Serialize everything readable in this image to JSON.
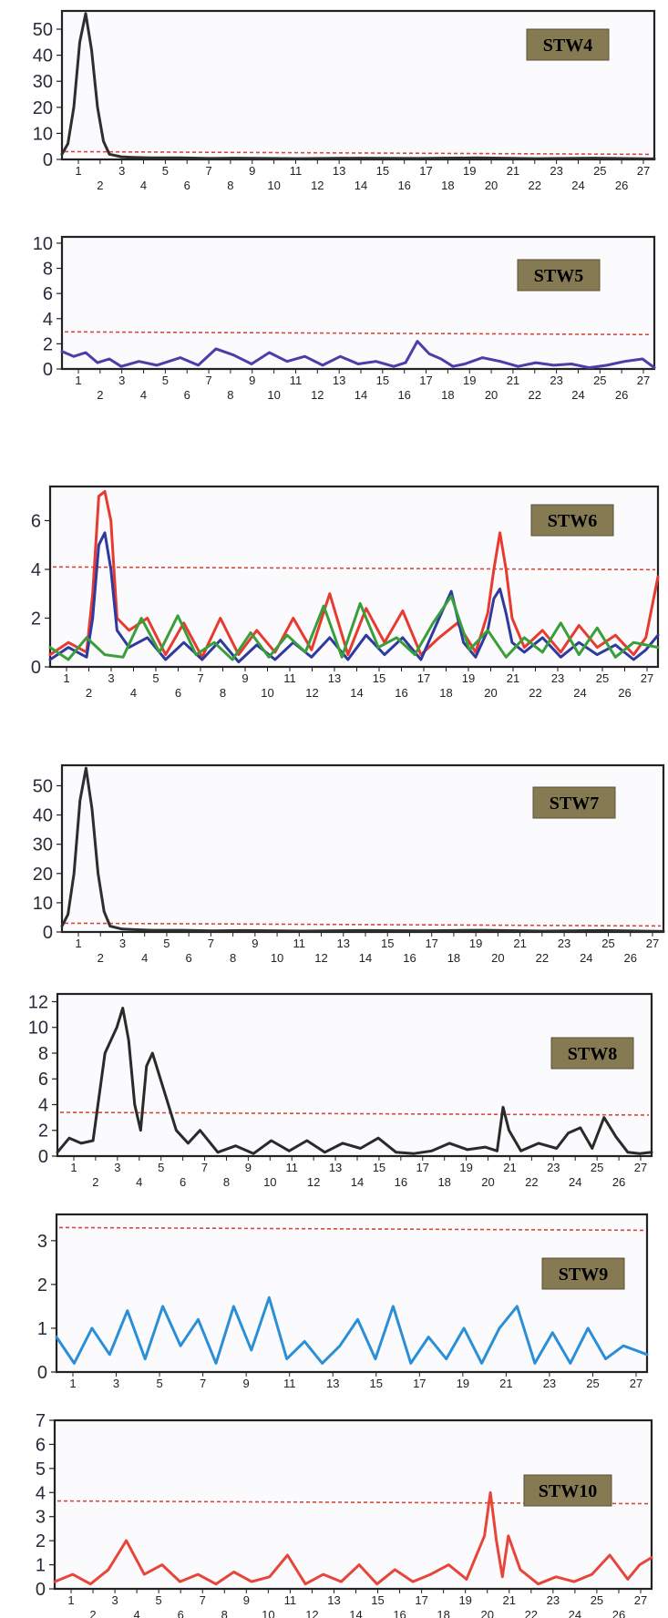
{
  "chart_data": [
    {
      "type": "line",
      "title": "STW4",
      "xlabel": "",
      "ylabel": "",
      "yticks": [
        "0",
        "10",
        "20",
        "30",
        "40",
        "50"
      ],
      "ylim": [
        0,
        57
      ],
      "threshold": 3,
      "x_tick_labels": [
        "1",
        "2",
        "3",
        "4",
        "5",
        "6",
        "7",
        "8",
        "9",
        "10",
        "11",
        "12",
        "13",
        "14",
        "15",
        "16",
        "17",
        "18",
        "19",
        "20",
        "21",
        "22",
        "23",
        "24",
        "25",
        "26",
        "27"
      ],
      "series": [
        {
          "color": "#2e2e2e",
          "x": [
            0,
            1,
            2,
            3,
            4,
            5,
            6,
            7,
            8,
            9,
            10,
            12,
            15,
            20,
            25,
            30,
            40,
            50,
            60,
            70,
            80,
            90,
            100
          ],
          "y": [
            2,
            6,
            20,
            45,
            56,
            42,
            20,
            7,
            2,
            1.5,
            1,
            0.8,
            0.6,
            0.6,
            0.4,
            0.5,
            0.3,
            0.5,
            0.4,
            0.6,
            0.3,
            0.5,
            0.2
          ]
        }
      ]
    },
    {
      "type": "line",
      "title": "STW5",
      "xlabel": "",
      "ylabel": "",
      "yticks": [
        "0",
        "2",
        "4",
        "6",
        "8",
        "10"
      ],
      "ylim": [
        0,
        10.5
      ],
      "threshold": 2.95,
      "x_tick_labels": [
        "1",
        "2",
        "3",
        "4",
        "5",
        "6",
        "7",
        "8",
        "9",
        "10",
        "11",
        "12",
        "13",
        "14",
        "15",
        "16",
        "17",
        "18",
        "19",
        "20",
        "21",
        "22",
        "23",
        "24",
        "25",
        "26",
        "27"
      ],
      "series": [
        {
          "color": "#4a3fa8",
          "x": [
            0,
            2,
            4,
            6,
            8,
            10,
            13,
            16,
            20,
            23,
            26,
            29,
            32,
            35,
            38,
            41,
            44,
            47,
            50,
            53,
            56,
            58,
            60,
            62,
            64,
            66,
            68,
            71,
            74,
            77,
            80,
            83,
            86,
            89,
            92,
            95,
            98,
            100
          ],
          "y": [
            1.4,
            1,
            1.3,
            0.5,
            0.8,
            0.2,
            0.6,
            0.3,
            0.9,
            0.3,
            1.6,
            1.1,
            0.4,
            1.3,
            0.6,
            1,
            0.3,
            1,
            0.4,
            0.6,
            0.2,
            0.5,
            2.2,
            1.2,
            0.8,
            0.2,
            0.4,
            0.9,
            0.6,
            0.2,
            0.5,
            0.3,
            0.4,
            0.1,
            0.3,
            0.6,
            0.8,
            0.1
          ]
        }
      ]
    },
    {
      "type": "line",
      "title": "STW6",
      "xlabel": "",
      "ylabel": "",
      "yticks": [
        "0",
        "2",
        "4",
        "6"
      ],
      "ylim": [
        0,
        7.4
      ],
      "threshold": 4.1,
      "x_tick_labels": [
        "1",
        "2",
        "3",
        "4",
        "5",
        "6",
        "7",
        "8",
        "9",
        "10",
        "11",
        "12",
        "13",
        "14",
        "15",
        "16",
        "17",
        "18",
        "19",
        "20",
        "21",
        "22",
        "23",
        "24",
        "25",
        "26",
        "27"
      ],
      "series": [
        {
          "color": "#e83a2e",
          "x": [
            0,
            3,
            6,
            7,
            8,
            9,
            10,
            11,
            13,
            16,
            19,
            22,
            25,
            28,
            31,
            34,
            37,
            40,
            43,
            46,
            49,
            52,
            55,
            58,
            61,
            64,
            67,
            70,
            72,
            73,
            74,
            75,
            76,
            78,
            81,
            84,
            87,
            90,
            93,
            96,
            98,
            100
          ],
          "y": [
            0.5,
            1,
            0.6,
            3,
            7,
            7.2,
            6,
            2,
            1.5,
            2,
            0.5,
            1.8,
            0.4,
            2,
            0.5,
            1.5,
            0.6,
            2,
            0.7,
            3,
            0.5,
            2.4,
            1,
            2.3,
            0.5,
            1.2,
            1.8,
            0.6,
            2.2,
            4,
            5.5,
            4,
            2,
            0.8,
            1.5,
            0.6,
            1.7,
            0.8,
            1.3,
            0.5,
            1.2,
            3.7
          ]
        },
        {
          "color": "#2e3a9e",
          "x": [
            0,
            3,
            6,
            7,
            8,
            9,
            10,
            11,
            13,
            16,
            19,
            22,
            25,
            28,
            31,
            34,
            37,
            40,
            43,
            46,
            49,
            52,
            55,
            58,
            61,
            64,
            66,
            68,
            70,
            72,
            73,
            74,
            75,
            76,
            78,
            81,
            84,
            87,
            90,
            93,
            96,
            98,
            100
          ],
          "y": [
            0.3,
            0.8,
            0.4,
            2,
            5,
            5.5,
            4,
            1.5,
            0.8,
            1.2,
            0.3,
            1,
            0.3,
            1.1,
            0.2,
            0.9,
            0.3,
            1,
            0.4,
            1.2,
            0.3,
            1.3,
            0.5,
            1.2,
            0.3,
            2,
            3.1,
            1,
            0.4,
            1.5,
            2.8,
            3.2,
            2.2,
            1,
            0.6,
            1.2,
            0.4,
            1,
            0.5,
            0.9,
            0.3,
            0.7,
            1.3
          ]
        },
        {
          "color": "#3a9e3a",
          "x": [
            0,
            3,
            6,
            9,
            12,
            15,
            18,
            21,
            24,
            27,
            30,
            33,
            36,
            39,
            42,
            45,
            48,
            51,
            54,
            57,
            60,
            63,
            66,
            69,
            72,
            75,
            78,
            81,
            84,
            87,
            90,
            93,
            96,
            100
          ],
          "y": [
            0.8,
            0.3,
            1.2,
            0.5,
            0.4,
            2,
            0.6,
            2.1,
            0.5,
            1,
            0.3,
            1.4,
            0.4,
            1.3,
            0.6,
            2.5,
            0.4,
            2.6,
            0.8,
            1.2,
            0.5,
            1.8,
            2.9,
            0.7,
            1.5,
            0.4,
            1.2,
            0.6,
            1.8,
            0.5,
            1.6,
            0.4,
            1,
            0.8
          ]
        }
      ]
    },
    {
      "type": "line",
      "title": "STW7",
      "xlabel": "",
      "ylabel": "",
      "yticks": [
        "0",
        "10",
        "20",
        "30",
        "40",
        "50"
      ],
      "ylim": [
        0,
        57
      ],
      "threshold": 3,
      "x_tick_labels": [
        "1",
        "2",
        "3",
        "4",
        "5",
        "6",
        "7",
        "8",
        "9",
        "10",
        "11",
        "12",
        "13",
        "14",
        "15",
        "16",
        "17",
        "18",
        "19",
        "20",
        "21",
        "22",
        "23",
        "24",
        "25",
        "26",
        "27"
      ],
      "series": [
        {
          "color": "#2e2e2e",
          "x": [
            0,
            1,
            2,
            3,
            4,
            5,
            6,
            7,
            8,
            9,
            10,
            12,
            15,
            20,
            25,
            30,
            40,
            50,
            60,
            70,
            80,
            90,
            100
          ],
          "y": [
            2,
            6,
            20,
            45,
            56,
            42,
            20,
            7,
            2,
            1.5,
            1,
            0.8,
            0.6,
            0.6,
            0.4,
            0.5,
            0.3,
            0.5,
            0.4,
            0.6,
            0.3,
            0.5,
            0.2
          ]
        }
      ]
    },
    {
      "type": "line",
      "title": "STW8",
      "xlabel": "",
      "ylabel": "",
      "yticks": [
        "0",
        "2",
        "4",
        "6",
        "8",
        "10",
        "12"
      ],
      "ylim": [
        0,
        12.6
      ],
      "threshold": 3.4,
      "x_tick_labels": [
        "1",
        "2",
        "3",
        "4",
        "5",
        "6",
        "7",
        "8",
        "9",
        "10",
        "11",
        "12",
        "13",
        "14",
        "15",
        "16",
        "17",
        "18",
        "19",
        "20",
        "21",
        "22",
        "23",
        "24",
        "25",
        "26",
        "27"
      ],
      "series": [
        {
          "color": "#2a2a2a",
          "x": [
            0,
            2,
            4,
            6,
            8,
            10,
            11,
            12,
            13,
            14,
            15,
            16,
            18,
            20,
            22,
            24,
            27,
            30,
            33,
            36,
            39,
            42,
            45,
            48,
            51,
            54,
            57,
            60,
            63,
            66,
            69,
            72,
            74,
            75,
            76,
            78,
            81,
            84,
            86,
            88,
            90,
            92,
            94,
            96,
            98,
            100
          ],
          "y": [
            0.3,
            1.4,
            1,
            1.2,
            8,
            10,
            11.5,
            9,
            4,
            2,
            7,
            8,
            5,
            2,
            1,
            2,
            0.3,
            0.8,
            0.2,
            1.2,
            0.4,
            1.2,
            0.3,
            1,
            0.6,
            1.4,
            0.3,
            0.2,
            0.4,
            1,
            0.5,
            0.7,
            0.4,
            3.8,
            2,
            0.4,
            1,
            0.6,
            1.8,
            2.2,
            0.6,
            3,
            1.5,
            0.3,
            0.2,
            0.3
          ]
        }
      ]
    },
    {
      "type": "line",
      "title": "STW9",
      "xlabel": "",
      "ylabel": "",
      "yticks": [
        "0",
        "1",
        "2",
        "3"
      ],
      "ylim": [
        0,
        3.6
      ],
      "threshold": 3.3,
      "x_tick_labels": [
        "1",
        "3",
        "5",
        "7",
        "9",
        "11",
        "13",
        "15",
        "17",
        "19",
        "21",
        "23",
        "25",
        "27"
      ],
      "series": [
        {
          "color": "#2a8fd6",
          "x": [
            0,
            3,
            6,
            9,
            12,
            15,
            18,
            21,
            24,
            27,
            30,
            33,
            36,
            39,
            42,
            45,
            48,
            51,
            54,
            57,
            60,
            63,
            66,
            69,
            72,
            75,
            78,
            81,
            84,
            87,
            90,
            93,
            96,
            100
          ],
          "y": [
            0.8,
            0.2,
            1,
            0.4,
            1.4,
            0.3,
            1.5,
            0.6,
            1.2,
            0.2,
            1.5,
            0.5,
            1.7,
            0.3,
            0.7,
            0.2,
            0.6,
            1.2,
            0.3,
            1.5,
            0.2,
            0.8,
            0.3,
            1,
            0.2,
            1,
            1.5,
            0.2,
            0.9,
            0.2,
            1,
            0.3,
            0.6,
            0.4
          ]
        }
      ]
    },
    {
      "type": "line",
      "title": "STW10",
      "xlabel": "",
      "ylabel": "",
      "yticks": [
        "0",
        "1",
        "2",
        "3",
        "4",
        "5",
        "6",
        "7"
      ],
      "ylim": [
        0,
        7
      ],
      "threshold": 3.65,
      "x_tick_labels": [
        "1",
        "2",
        "3",
        "4",
        "5",
        "6",
        "7",
        "8",
        "9",
        "10",
        "11",
        "12",
        "13",
        "14",
        "15",
        "16",
        "17",
        "18",
        "19",
        "20",
        "21",
        "22",
        "23",
        "24",
        "25",
        "26",
        "27"
      ],
      "series": [
        {
          "color": "#e8453a",
          "x": [
            0,
            3,
            6,
            9,
            12,
            15,
            18,
            21,
            24,
            27,
            30,
            33,
            36,
            39,
            42,
            45,
            48,
            51,
            54,
            57,
            60,
            63,
            66,
            69,
            72,
            73,
            74,
            75,
            76,
            78,
            81,
            84,
            87,
            90,
            93,
            96,
            98,
            100
          ],
          "y": [
            0.3,
            0.6,
            0.2,
            0.8,
            2,
            0.6,
            1,
            0.3,
            0.6,
            0.2,
            0.7,
            0.3,
            0.5,
            1.4,
            0.2,
            0.6,
            0.3,
            1,
            0.2,
            0.8,
            0.3,
            0.6,
            1,
            0.4,
            2.2,
            4,
            2,
            0.5,
            2.2,
            0.8,
            0.2,
            0.5,
            0.3,
            0.6,
            1.4,
            0.4,
            1,
            1.3
          ]
        }
      ]
    }
  ]
}
